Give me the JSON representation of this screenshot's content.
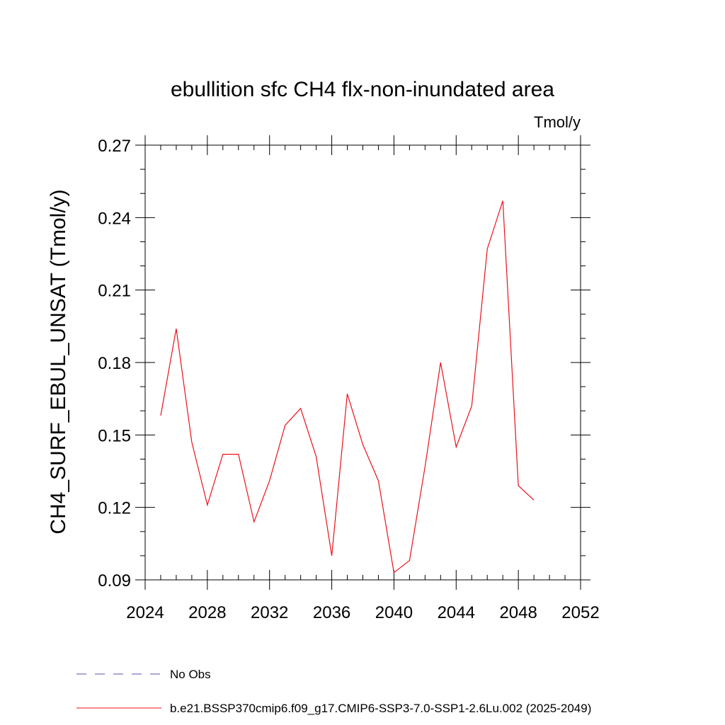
{
  "chart_data": {
    "type": "line",
    "title": "ebullition sfc CH4 flx-non-inundated area",
    "units_label": "Tmol/y",
    "ylabel": "CH4_SURF_EBUL_UNSAT  (Tmol/y)",
    "xlabel": "",
    "xlim": [
      2024,
      2052
    ],
    "ylim": [
      0.09,
      0.27
    ],
    "xticks": [
      2024,
      2028,
      2032,
      2036,
      2040,
      2044,
      2048,
      2052
    ],
    "xtick_labels": [
      "2024",
      "2028",
      "2032",
      "2036",
      "2040",
      "2044",
      "2048",
      "2052"
    ],
    "yticks": [
      0.09,
      0.12,
      0.15,
      0.18,
      0.21,
      0.24,
      0.27
    ],
    "ytick_labels": [
      "0.09",
      "0.12",
      "0.15",
      "0.18",
      "0.21",
      "0.24",
      "0.27"
    ],
    "grid": false,
    "legend_position": "bottom",
    "series": [
      {
        "name": "No Obs",
        "color": "#5a50b4",
        "dash": "dashed",
        "x": [],
        "y": []
      },
      {
        "name": "b.e21.BSSP370cmip6.f09_g17.CMIP6-SSP3-7.0-SSP1-2.6Lu.002 (2025-2049)",
        "color": "#e8121b",
        "dash": "solid",
        "x": [
          2025,
          2026,
          2027,
          2028,
          2029,
          2030,
          2031,
          2032,
          2033,
          2034,
          2035,
          2036,
          2037,
          2038,
          2039,
          2040,
          2041,
          2042,
          2043,
          2044,
          2045,
          2046,
          2047,
          2048,
          2049
        ],
        "y": [
          0.158,
          0.194,
          0.147,
          0.121,
          0.142,
          0.142,
          0.114,
          0.131,
          0.154,
          0.161,
          0.141,
          0.1,
          0.167,
          0.146,
          0.131,
          0.093,
          0.098,
          0.137,
          0.18,
          0.145,
          0.162,
          0.227,
          0.247,
          0.129,
          0.123
        ]
      }
    ]
  }
}
